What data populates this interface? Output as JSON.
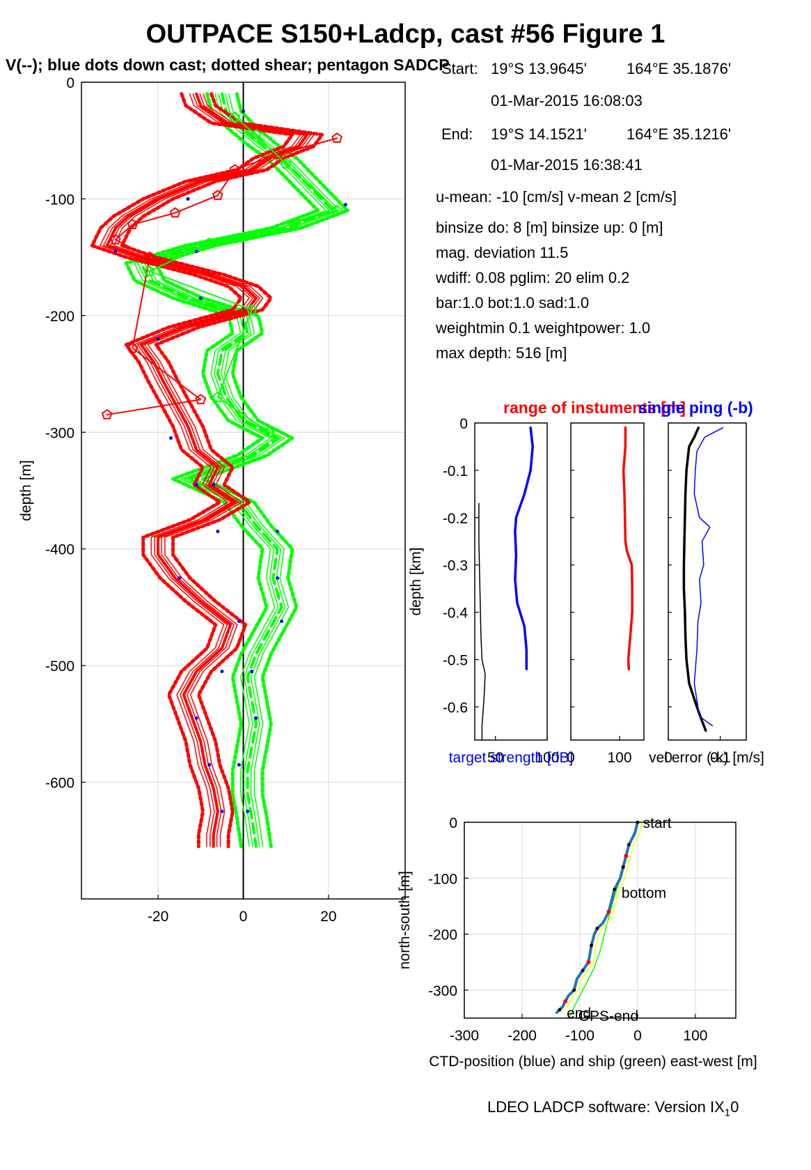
{
  "header": {
    "title": "OUTPACE S150+Ladcp, cast #56  Figure 1",
    "subtitle": "V(--); blue dots down cast; dotted shear; pentagon SADCP"
  },
  "info": {
    "start_label": "Start:",
    "start_lat": "19°S 13.9645'",
    "start_lon": "164°E 35.1876'",
    "start_time": "01-Mar-2015 16:08:03",
    "end_label": "End:",
    "end_lat": "19°S 14.1521'",
    "end_lon": "164°E 35.1216'",
    "end_time": "01-Mar-2015 16:38:41",
    "lines": [
      "u-mean: -10 [cm/s]    v-mean   2 [cm/s]",
      "binsize do: 8 [m]  binsize up:  0 [m]",
      "mag. deviation 11.5",
      "wdiff: 0.08  pglim: 20  elim 0.2",
      "  bar:1.0 bot:1.0 sad:1.0",
      "weightmin 0.1  weightpower: 1.0",
      "max depth: 516 [m]"
    ]
  },
  "footer": {
    "software": "LDEO LADCP software: Version IX",
    "sub": "1",
    "tail": "0"
  },
  "colors": {
    "u_red": "#ff0000",
    "v_green": "#00ff00",
    "blue": "#0000ff",
    "ctd_blue": "#1f77b4",
    "grid": "#d9d9d9",
    "yellow": "#ffff00"
  },
  "chart_data": [
    {
      "id": "profile",
      "type": "line",
      "ylabel": "depth [m]",
      "xlim": [
        -38,
        38
      ],
      "ylim": [
        -700,
        0
      ],
      "xticks": [
        -20,
        0,
        20
      ],
      "yticks": [
        0,
        -100,
        -200,
        -300,
        -400,
        -500,
        -600
      ],
      "grid": true,
      "series": [
        {
          "name": "u",
          "color": "#ff0000",
          "depth": [
            -10,
            -20,
            -35,
            -45,
            -55,
            -65,
            -75,
            -85,
            -100,
            -115,
            -125,
            -140,
            -150,
            -165,
            -175,
            -185,
            -195,
            -210,
            -225,
            -240,
            -255,
            -275,
            -295,
            -315,
            -330,
            -345,
            -360,
            -375,
            -390,
            -405,
            -425,
            -445,
            -465,
            -485,
            -505,
            -525,
            -545,
            -565,
            -585,
            -605,
            -625,
            -645,
            -655
          ],
          "values": [
            -11,
            -10,
            -4,
            15,
            13,
            6,
            2,
            -10,
            -20,
            -27,
            -30,
            -32,
            -24,
            -8,
            0,
            3,
            1,
            -14,
            -24,
            -21,
            -19,
            -16,
            -13,
            -11,
            -6,
            -8,
            -2,
            -9,
            -20,
            -20,
            -16,
            -10,
            -3,
            -5,
            -11,
            -14,
            -12,
            -10,
            -9,
            -7,
            -6,
            -7,
            -7
          ]
        },
        {
          "name": "v",
          "color": "#00ff00",
          "depth": [
            -10,
            -25,
            -40,
            -55,
            -65,
            -80,
            -95,
            -110,
            -125,
            -140,
            -155,
            -170,
            -185,
            -200,
            -215,
            -230,
            -250,
            -270,
            -290,
            -305,
            -320,
            -340,
            -360,
            -380,
            -400,
            -425,
            -450,
            -470,
            -490,
            -510,
            -530,
            -550,
            -570,
            -590,
            -610,
            -630,
            -655
          ],
          "values": [
            -5,
            -4,
            0,
            5,
            9,
            13,
            17,
            21,
            10,
            -10,
            -24,
            -22,
            -13,
            0,
            1,
            -5,
            -6,
            -4,
            0,
            8,
            2,
            -13,
            -1,
            3,
            8,
            7,
            9,
            6,
            3,
            1,
            2,
            3,
            2,
            1,
            1,
            2,
            3
          ]
        },
        {
          "name": "SADCP u",
          "color": "#ff0000",
          "depth": [
            -48,
            -62,
            -75,
            -97,
            -112,
            -122,
            -135,
            -150,
            -228,
            -272,
            -285
          ],
          "values": [
            22,
            8,
            -2,
            -6,
            -16,
            -26,
            -30,
            -22,
            -26,
            -10,
            -32
          ]
        },
        {
          "name": "SADCP v",
          "color": "#00ff00",
          "depth": [
            -30,
            -45,
            -70,
            -110,
            -138,
            -162,
            -195,
            -270,
            -300
          ],
          "values": [
            -2,
            3,
            10,
            22,
            -8,
            -22,
            2,
            -6,
            6
          ]
        },
        {
          "name": "down cast dots",
          "color": "#0000ff",
          "depth": [
            -25,
            -100,
            -105,
            -145,
            -145,
            -185,
            -220,
            -305,
            -345,
            -345,
            -385,
            -385,
            -425,
            -425,
            -462,
            -462,
            -505,
            -505,
            -545,
            -545,
            -585,
            -585,
            -625,
            -625
          ],
          "values": [
            0,
            -13,
            24,
            -30,
            -11,
            -10,
            -20,
            -17,
            -11,
            -7,
            -6,
            8,
            -15,
            8,
            -1,
            9,
            -5,
            2,
            -11,
            3,
            -8,
            -1,
            -5,
            1
          ]
        }
      ]
    },
    {
      "id": "target-strength",
      "type": "line",
      "xlabel": "target strength [dB]",
      "ylabel": "depth [km]",
      "title": "range of instuments [m]",
      "xlim": [
        30,
        100
      ],
      "ylim": [
        -0.67,
        0
      ],
      "xticks": [
        50,
        100
      ],
      "xticklabels": [
        "50",
        "100"
      ],
      "yticks": [
        0,
        -0.1,
        -0.2,
        -0.3,
        -0.4,
        -0.5,
        -0.6
      ],
      "series": [
        {
          "name": "range",
          "color": "#000000",
          "depth": [
            -0.17,
            -0.25,
            -0.35,
            -0.45,
            -0.5,
            -0.53,
            -0.58,
            -0.64,
            -0.67
          ],
          "values": [
            34,
            34,
            35,
            36,
            37,
            40,
            39,
            37,
            37
          ]
        },
        {
          "name": "target strength",
          "color": "#0000ff",
          "depth": [
            -0.01,
            -0.05,
            -0.1,
            -0.15,
            -0.2,
            -0.23,
            -0.28,
            -0.33,
            -0.38,
            -0.43,
            -0.48,
            -0.52
          ],
          "values": [
            84,
            86,
            84,
            78,
            70,
            69,
            70,
            69,
            71,
            78,
            80,
            80
          ]
        }
      ]
    },
    {
      "id": "red-profile",
      "type": "line",
      "xlim": [
        0,
        150
      ],
      "ylim": [
        -0.67,
        0
      ],
      "xticks": [
        0,
        100
      ],
      "xticklabels": [
        "0",
        "100"
      ],
      "series": [
        {
          "name": "red",
          "color": "#ff0000",
          "depth": [
            -0.01,
            -0.05,
            -0.1,
            -0.15,
            -0.2,
            -0.25,
            -0.27,
            -0.3,
            -0.35,
            -0.4,
            -0.45,
            -0.5,
            -0.52
          ],
          "values": [
            112,
            112,
            108,
            110,
            111,
            112,
            115,
            125,
            126,
            126,
            122,
            118,
            119
          ]
        }
      ]
    },
    {
      "id": "vel-error",
      "type": "line",
      "xlabel": "vel error (-k) [m/s]",
      "title": "single ping (-b)",
      "xlim": [
        0,
        0.15
      ],
      "ylim": [
        -0.67,
        0
      ],
      "xticks": [
        0,
        0.1
      ],
      "xticklabels": [
        "0",
        "0.1"
      ],
      "series": [
        {
          "name": "vel error",
          "color": "#000000",
          "depth": [
            -0.01,
            -0.03,
            -0.05,
            -0.1,
            -0.15,
            -0.2,
            -0.25,
            -0.3,
            -0.35,
            -0.4,
            -0.45,
            -0.5,
            -0.55,
            -0.6,
            -0.63,
            -0.65
          ],
          "values": [
            0.058,
            0.05,
            0.04,
            0.035,
            0.033,
            0.032,
            0.031,
            0.03,
            0.03,
            0.032,
            0.033,
            0.035,
            0.04,
            0.055,
            0.065,
            0.072
          ]
        },
        {
          "name": "single ping",
          "color": "#0000ff",
          "depth": [
            -0.01,
            -0.03,
            -0.06,
            -0.1,
            -0.15,
            -0.2,
            -0.22,
            -0.25,
            -0.3,
            -0.33,
            -0.38,
            -0.42,
            -0.48,
            -0.55,
            -0.62,
            -0.64
          ],
          "values": [
            0.105,
            0.07,
            0.055,
            0.052,
            0.05,
            0.06,
            0.08,
            0.065,
            0.068,
            0.06,
            0.063,
            0.057,
            0.055,
            0.05,
            0.06,
            0.085
          ]
        }
      ]
    },
    {
      "id": "position",
      "type": "line",
      "xlabel": "CTD-position (blue) and ship (green) east-west [m]",
      "ylabel": "north-south [m]",
      "xlim": [
        -300,
        170
      ],
      "ylim": [
        -350,
        0
      ],
      "xticks": [
        -300,
        -200,
        -100,
        0,
        100
      ],
      "yticks": [
        0,
        -100,
        -200,
        -300
      ],
      "grid": true,
      "annotations": [
        {
          "text": "start",
          "x": 2,
          "y": 0
        },
        {
          "text": "bottom",
          "x": -35,
          "y": -125
        },
        {
          "text": "end",
          "x": -130,
          "y": -340
        },
        {
          "text": "GPS-end",
          "x": -110,
          "y": -345
        }
      ],
      "series": [
        {
          "name": "CTD",
          "color": "#1f77b4",
          "x": [
            0,
            -5,
            -15,
            -20,
            -25,
            -30,
            -40,
            -45,
            -50,
            -60,
            -70,
            -75,
            -80,
            -85,
            -95,
            -105,
            -110,
            -120,
            -125,
            -130,
            -135,
            -140
          ],
          "y": [
            0,
            -20,
            -40,
            -60,
            -80,
            -100,
            -120,
            -140,
            -160,
            -180,
            -190,
            -200,
            -220,
            -250,
            -265,
            -280,
            -300,
            -310,
            -320,
            -330,
            -335,
            -340
          ]
        },
        {
          "name": "ship",
          "color": "#00ff00",
          "x": [
            0,
            -10,
            -20,
            -30,
            -45,
            -55,
            -65,
            -75,
            -90,
            -100,
            -110,
            -115,
            -120
          ],
          "y": [
            0,
            -30,
            -60,
            -100,
            -150,
            -190,
            -230,
            -260,
            -290,
            -310,
            -330,
            -342,
            -348
          ]
        }
      ]
    }
  ]
}
